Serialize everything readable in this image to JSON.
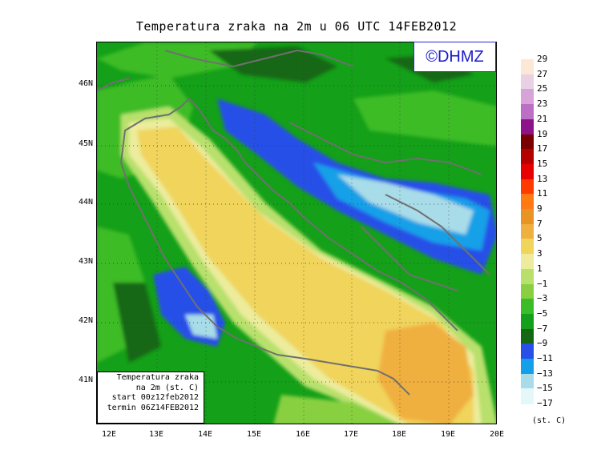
{
  "title": "Temperatura zraka na 2m u 06 UTC 14FEB2012",
  "logo": "©DHMZ",
  "info": {
    "line1": "Temperatura zraka",
    "line2": "na 2m (st. C)",
    "line3": "start 00z12feb2012",
    "line4": "termin 06Z14FEB2012"
  },
  "axes": {
    "lat_labels": [
      "46N",
      "45N",
      "44N",
      "43N",
      "42N",
      "41N"
    ],
    "lon_labels": [
      "12E",
      "13E",
      "14E",
      "15E",
      "16E",
      "17E",
      "18E",
      "19E",
      "20E"
    ]
  },
  "legend": {
    "unit": "(st. C)",
    "labels": [
      "29",
      "27",
      "25",
      "23",
      "21",
      "19",
      "17",
      "15",
      "13",
      "11",
      "9",
      "7",
      "5",
      "3",
      "1",
      "−1",
      "−3",
      "−5",
      "−7",
      "−9",
      "−11",
      "−13",
      "−15",
      "−17"
    ],
    "colors": [
      "#fbe8d6",
      "#ead0e4",
      "#d6a4d8",
      "#bb70c5",
      "#8c1488",
      "#7a0000",
      "#b40000",
      "#e80000",
      "#ff3a00",
      "#ff7a12",
      "#e89424",
      "#f0b040",
      "#f0d45c",
      "#ecec9c",
      "#b8e06c",
      "#88d040",
      "#3cbc28",
      "#14a018",
      "#146814",
      "#2850e8",
      "#14a0e8",
      "#a8dce8",
      "#e4f8fc"
    ]
  },
  "map_colors": {
    "cold_dark": "#146814",
    "green": "#14a018",
    "green_light": "#3cbc28",
    "lime": "#88d040",
    "pale_lime": "#b8e06c",
    "pale_yellow": "#ecec9c",
    "yellow": "#f0d45c",
    "orange": "#f0b040",
    "blue": "#2850e8",
    "cyan": "#14a0e8",
    "pale_cyan": "#a8dce8",
    "coast": "#707070"
  }
}
